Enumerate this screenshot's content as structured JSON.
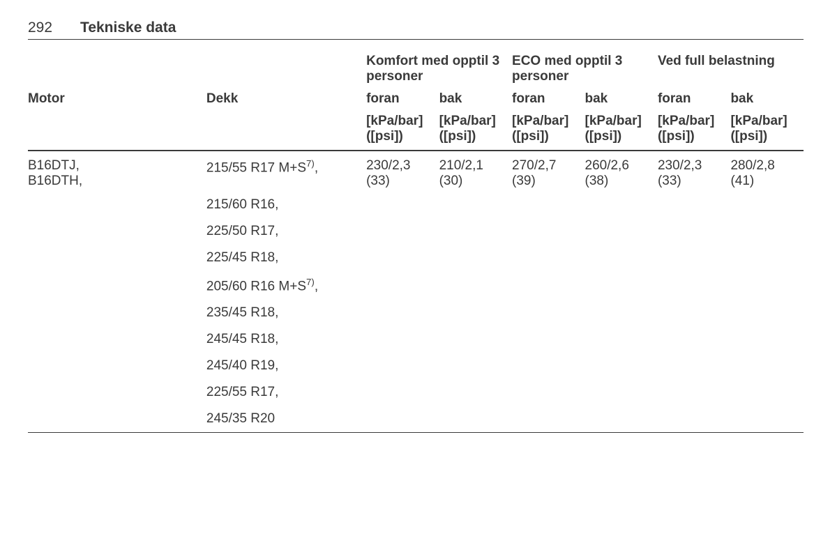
{
  "page_number": "292",
  "page_title": "Tekniske data",
  "groups": [
    {
      "label": "Komfort med opptil 3 personer"
    },
    {
      "label": "ECO med opptil 3 personer"
    },
    {
      "label": "Ved full belastning"
    }
  ],
  "columns": {
    "motor": "Motor",
    "dekk": "Dekk",
    "foran": "foran",
    "bak": "bak"
  },
  "unit_line1": "[kPa/bar]",
  "unit_line2": "([psi])",
  "motor_codes": [
    "B16DTJ,",
    "B16DTH,"
  ],
  "first_tire": "215/55 R17 M+S",
  "first_tire_sup": "7)",
  "first_tire_trail": ",",
  "values": [
    {
      "kpa": "230/2,3",
      "psi": "(33)"
    },
    {
      "kpa": "210/2,1",
      "psi": "(30)"
    },
    {
      "kpa": "270/2,7",
      "psi": "(39)"
    },
    {
      "kpa": "260/2,6",
      "psi": "(38)"
    },
    {
      "kpa": "230/2,3",
      "psi": "(33)"
    },
    {
      "kpa": "280/2,8",
      "psi": "(41)"
    }
  ],
  "other_tires": [
    {
      "text": "215/60 R16,",
      "sup": ""
    },
    {
      "text": "225/50 R17,",
      "sup": ""
    },
    {
      "text": "225/45 R18,",
      "sup": ""
    },
    {
      "text": "205/60 R16 M+S",
      "sup": "7)",
      "trail": ","
    },
    {
      "text": "235/45 R18,",
      "sup": ""
    },
    {
      "text": "245/45 R18,",
      "sup": ""
    },
    {
      "text": "245/40 R19,",
      "sup": ""
    },
    {
      "text": "225/55 R17,",
      "sup": ""
    },
    {
      "text": "245/35 R20",
      "sup": ""
    }
  ],
  "colors": {
    "text": "#3a3a3a",
    "background": "#ffffff",
    "rule": "#3a3a3a"
  },
  "font_sizes": {
    "header": 21,
    "body": 19
  }
}
